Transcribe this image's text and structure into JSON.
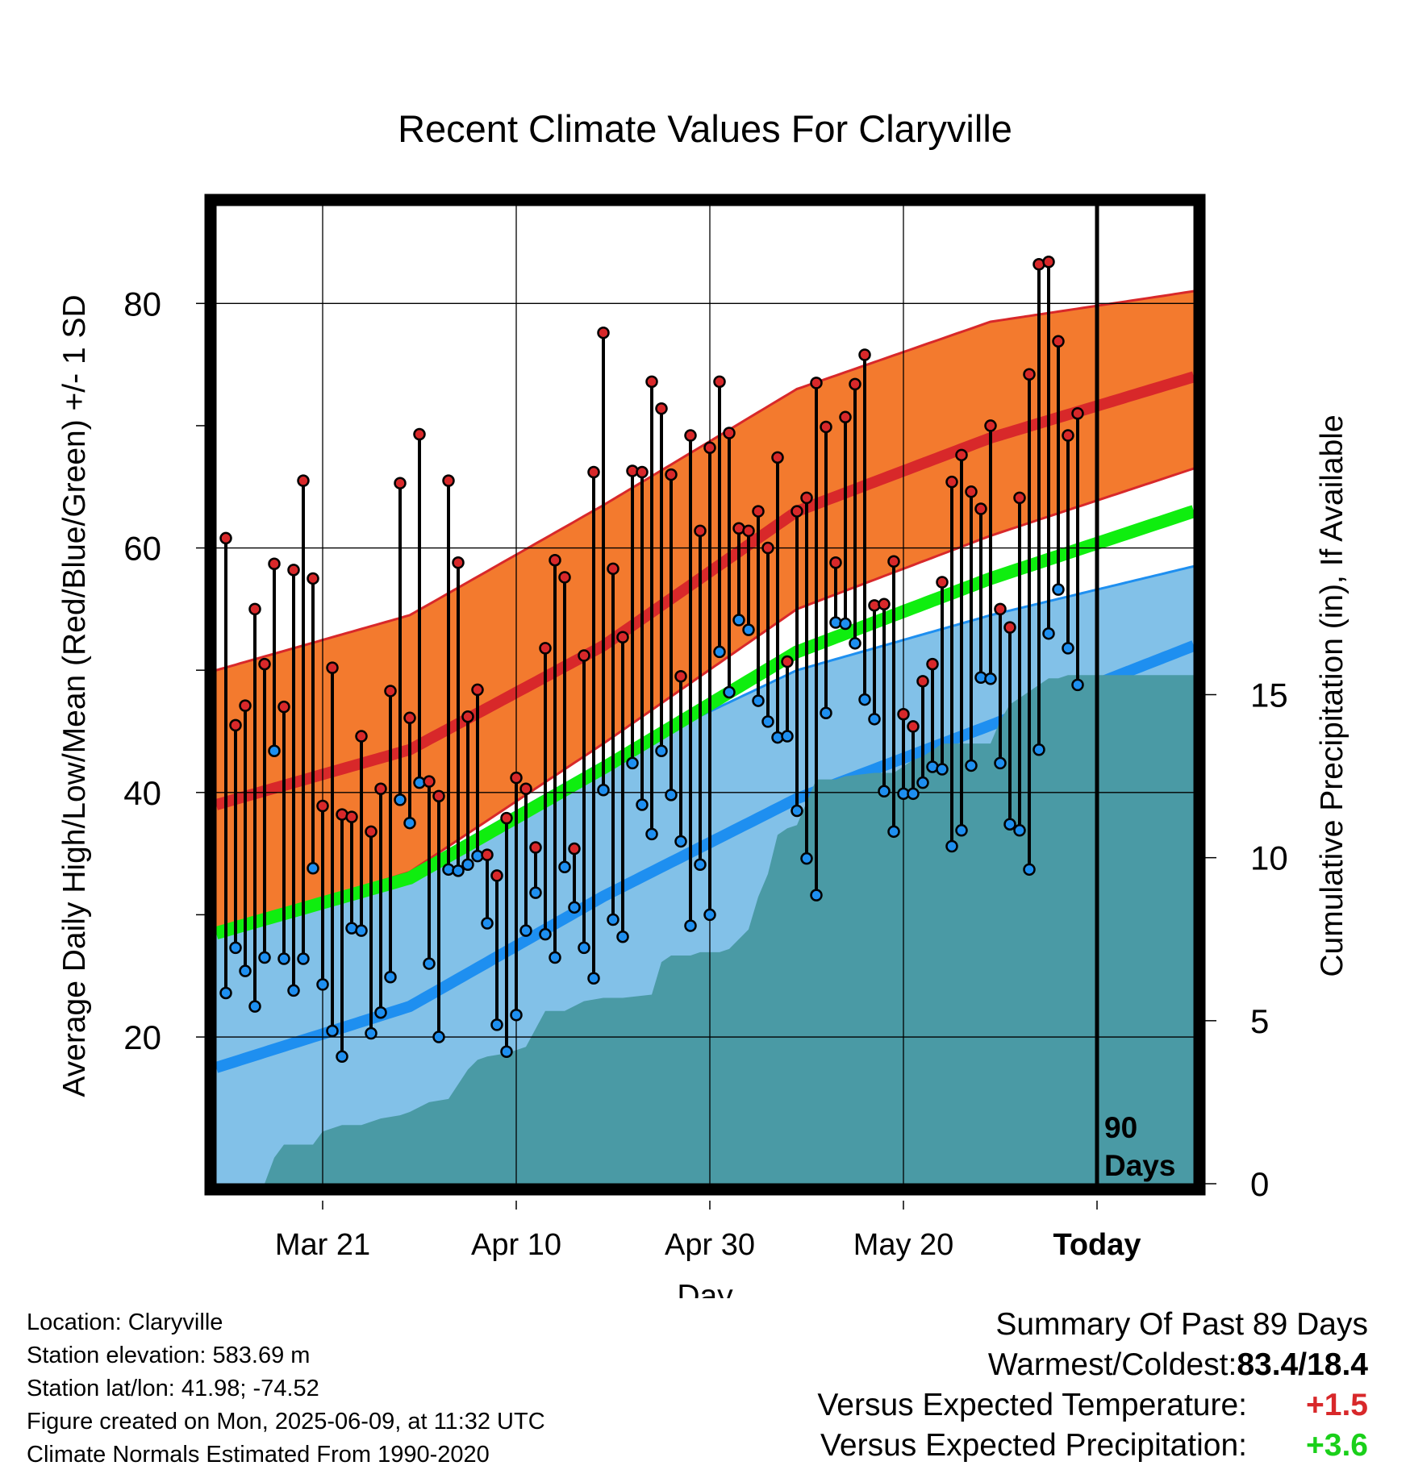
{
  "title": "Recent Climate Values For Claryville",
  "chart_data": {
    "type": "line",
    "title": "Recent Climate Values For Claryville",
    "xlabel": "Day",
    "ylabel_left": "Average Daily High/Low/Mean (Red/Blue/Green) +/- 1 SD",
    "ylabel_right": "Cumulative Precipitation (in), If Available",
    "x_tick_labels": [
      "Mar 21",
      "Apr 10",
      "Apr 30",
      "May 20",
      "Today"
    ],
    "x_tick_days": [
      11,
      31,
      51,
      71,
      91
    ],
    "today_day": 91,
    "x_range_days": [
      0,
      101
    ],
    "today_marker_label": [
      "90",
      "Days"
    ],
    "ylim_left": [
      8,
      88
    ],
    "y_ticks_left": [
      20,
      40,
      60,
      80
    ],
    "ylim_right": [
      0,
      30
    ],
    "y_ticks_right": [
      0,
      5,
      10,
      15
    ],
    "grid": true,
    "normal_high": {
      "name": "normal high",
      "days": [
        0,
        20,
        40,
        60,
        80,
        101
      ],
      "mean": [
        39,
        43.5,
        52,
        63,
        69,
        74
      ],
      "sd_upper": [
        50,
        54.5,
        63.5,
        73,
        78.5,
        81
      ],
      "sd_lower": [
        28.5,
        33.5,
        44,
        55,
        61,
        66.5
      ]
    },
    "normal_low": {
      "name": "normal low",
      "days": [
        0,
        20,
        40,
        60,
        80,
        101
      ],
      "mean": [
        17.5,
        22.5,
        31.5,
        39.5,
        45.5,
        52
      ],
      "sd_upper": [
        29,
        33.5,
        42.5,
        50,
        54.5,
        58.5
      ],
      "sd_lower": [
        6,
        11,
        21,
        29.5,
        37,
        46
      ]
    },
    "normal_mean": {
      "name": "normal mean",
      "days": [
        0,
        20,
        40,
        60,
        80,
        101
      ],
      "values": [
        28.5,
        33,
        42,
        51.5,
        57.5,
        63
      ]
    },
    "daily_highs": [
      60.8,
      45.5,
      47.1,
      55,
      50.5,
      58.7,
      47,
      58.2,
      65.5,
      57.5,
      38.9,
      50.2,
      38.2,
      38,
      44.6,
      36.8,
      40.3,
      48.3,
      65.3,
      46.1,
      69.3,
      40.9,
      39.7,
      65.5,
      58.8,
      46.2,
      48.4,
      34.9,
      33.2,
      37.9,
      41.2,
      40.3,
      35.5,
      51.8,
      59,
      57.6,
      35.4,
      51.2,
      66.2,
      77.6,
      58.3,
      52.7,
      66.3,
      66.2,
      73.6,
      71.4,
      66,
      49.5,
      69.2,
      61.4,
      68.2,
      73.6,
      69.4,
      61.6,
      61.4,
      63,
      60,
      67.4,
      50.7,
      63,
      64.1,
      73.5,
      69.9,
      58.8,
      70.7,
      73.4,
      75.8,
      55.3,
      55.4,
      58.9,
      46.4,
      45.4,
      49.1,
      50.5,
      57.2,
      65.4,
      67.6,
      64.6,
      63.2,
      70,
      55,
      53.5,
      64.1,
      74.2,
      83.2,
      83.4,
      76.9,
      69.2,
      71
    ],
    "daily_lows": [
      23.6,
      27.3,
      25.4,
      22.5,
      26.5,
      43.4,
      26.4,
      23.8,
      26.4,
      33.8,
      24.3,
      20.5,
      18.4,
      28.9,
      28.7,
      20.3,
      22,
      24.9,
      39.4,
      37.5,
      40.8,
      26,
      20,
      33.7,
      33.6,
      34.1,
      34.8,
      29.3,
      21,
      18.8,
      21.8,
      28.7,
      31.8,
      28.4,
      26.5,
      33.9,
      30.6,
      27.3,
      24.8,
      40.2,
      29.6,
      28.2,
      42.4,
      39,
      36.6,
      43.4,
      39.8,
      36,
      29.1,
      34.1,
      30,
      51.5,
      48.2,
      54.1,
      53.3,
      47.5,
      45.8,
      44.5,
      44.6,
      38.5,
      34.6,
      31.6,
      46.5,
      53.9,
      53.8,
      52.2,
      47.6,
      46,
      40.1,
      36.8,
      39.9,
      39.9,
      40.8,
      42.1,
      41.9,
      35.6,
      36.9,
      42.2,
      49.4,
      49.3,
      42.4,
      37.4,
      36.9,
      33.7,
      43.5,
      53,
      56.6,
      51.8,
      48.8
    ],
    "precip_cumulative": {
      "days": [
        0,
        5,
        6,
        7,
        10,
        11,
        13,
        15,
        17,
        19,
        20,
        22,
        24,
        26,
        27,
        28,
        30,
        32,
        34,
        36,
        38,
        40,
        42,
        45,
        46,
        47,
        49,
        50,
        52,
        53,
        55,
        56,
        57,
        58,
        59,
        60,
        62,
        64,
        65,
        68,
        70,
        71,
        72,
        73,
        74,
        75,
        80,
        81,
        82,
        86,
        87,
        88,
        101
      ],
      "values": [
        0,
        0,
        0.8,
        1.2,
        1.2,
        1.6,
        1.8,
        1.8,
        2,
        2.1,
        2.2,
        2.5,
        2.6,
        3.5,
        3.8,
        3.9,
        4,
        4.2,
        5.3,
        5.3,
        5.6,
        5.7,
        5.7,
        5.8,
        6.8,
        7,
        7,
        7.1,
        7.1,
        7.2,
        7.8,
        8.8,
        9.5,
        10.7,
        10.9,
        11,
        12.4,
        12.4,
        12.5,
        12.6,
        12.6,
        12.8,
        13,
        13.1,
        13.3,
        13.5,
        13.5,
        14.2,
        14.7,
        15.5,
        15.5,
        15.6,
        15.6
      ]
    }
  },
  "location": {
    "location_line": "Location: Claryville",
    "elevation_line": "Station elevation: 583.69 m",
    "latlon_line": "Station lat/lon: 41.98; -74.52",
    "created_line": "Figure created on Mon, 2025-06-09, at 11:32 UTC",
    "normals_line": "Climate Normals Estimated From 1990-2020"
  },
  "summary": {
    "heading": "Summary Of Past 89 Days",
    "warm_cold_label": "Warmest/Coldest:",
    "warm_cold_value": "83.4/18.4",
    "temp_label": "Versus Expected Temperature:",
    "temp_value": "+1.5",
    "precip_label": "Versus Expected Precipitation:",
    "precip_value": "+3.6"
  },
  "colors": {
    "high_band": "#f37a2e",
    "high_line": "#d8282a",
    "low_band": "#82c1e8",
    "low_line": "#1e8ff0",
    "mean_line": "#0fee0f",
    "precip_fill": "#4a9aa5",
    "high_marker": "#d8282a",
    "low_marker": "#1e8ff0",
    "temp_positive": "#d8282a",
    "precip_positive": "#1ad01a"
  }
}
